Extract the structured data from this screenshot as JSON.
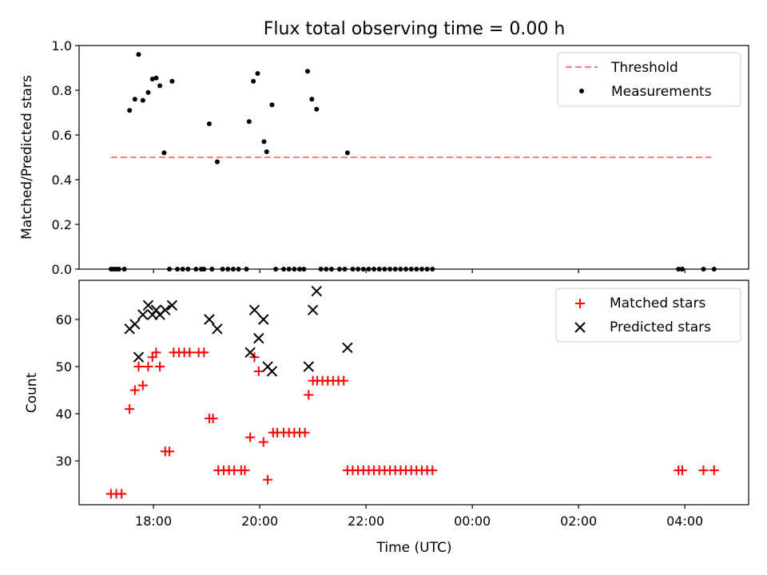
{
  "chart_data": {
    "title": "Flux total observing time = 0.00 h",
    "xlabel": "Time (UTC)",
    "x_ticks": [
      "18:00",
      "20:00",
      "22:00",
      "00:00",
      "02:00",
      "04:00"
    ],
    "x_tick_hours": [
      18,
      20,
      22,
      24,
      26,
      28
    ],
    "x_range_hours": [
      16.6,
      29.2
    ],
    "panels": [
      {
        "type": "scatter",
        "ylabel": "Matched/Predicted stars",
        "ylim": [
          0,
          1.0
        ],
        "yticks": [
          0.0,
          0.2,
          0.4,
          0.6,
          0.8,
          1.0
        ],
        "y_tick_labels": [
          "0.0",
          "0.2",
          "0.4",
          "0.6",
          "0.8",
          "1.0"
        ],
        "legend": "top-right",
        "threshold": {
          "name": "Threshold",
          "y": 0.5,
          "x_hours": [
            17.2,
            28.5
          ],
          "color": "#ff7f7f"
        },
        "series": [
          {
            "name": "Measurements",
            "color": "#000000",
            "marker": "dot",
            "points": [
              [
                17.2,
                0.0
              ],
              [
                17.25,
                0.0
              ],
              [
                17.3,
                0.0
              ],
              [
                17.35,
                0.0
              ],
              [
                17.45,
                0.0
              ],
              [
                17.55,
                0.71
              ],
              [
                17.65,
                0.76
              ],
              [
                17.72,
                0.96
              ],
              [
                17.8,
                0.755
              ],
              [
                17.9,
                0.79
              ],
              [
                17.98,
                0.85
              ],
              [
                18.05,
                0.855
              ],
              [
                18.12,
                0.82
              ],
              [
                18.2,
                0.52
              ],
              [
                18.3,
                0.0
              ],
              [
                18.35,
                0.84
              ],
              [
                18.45,
                0.0
              ],
              [
                18.55,
                0.0
              ],
              [
                18.65,
                0.0
              ],
              [
                18.8,
                0.0
              ],
              [
                18.9,
                0.0
              ],
              [
                18.95,
                0.0
              ],
              [
                19.05,
                0.65
              ],
              [
                19.1,
                0.0
              ],
              [
                19.2,
                0.48
              ],
              [
                19.3,
                0.0
              ],
              [
                19.4,
                0.0
              ],
              [
                19.5,
                0.0
              ],
              [
                19.6,
                0.0
              ],
              [
                19.75,
                0.0
              ],
              [
                19.8,
                0.66
              ],
              [
                19.88,
                0.84
              ],
              [
                19.96,
                0.875
              ],
              [
                20.08,
                0.57
              ],
              [
                20.13,
                0.525
              ],
              [
                20.23,
                0.735
              ],
              [
                20.3,
                0.0
              ],
              [
                20.45,
                0.0
              ],
              [
                20.55,
                0.0
              ],
              [
                20.65,
                0.0
              ],
              [
                20.75,
                0.0
              ],
              [
                20.83,
                0.0
              ],
              [
                20.9,
                0.885
              ],
              [
                20.98,
                0.76
              ],
              [
                21.07,
                0.715
              ],
              [
                21.15,
                0.0
              ],
              [
                21.25,
                0.0
              ],
              [
                21.35,
                0.0
              ],
              [
                21.5,
                0.0
              ],
              [
                21.6,
                0.0
              ],
              [
                21.65,
                0.52
              ],
              [
                21.75,
                0.0
              ],
              [
                21.85,
                0.0
              ],
              [
                21.95,
                0.0
              ],
              [
                22.05,
                0.0
              ],
              [
                22.15,
                0.0
              ],
              [
                22.25,
                0.0
              ],
              [
                22.35,
                0.0
              ],
              [
                22.45,
                0.0
              ],
              [
                22.55,
                0.0
              ],
              [
                22.65,
                0.0
              ],
              [
                22.75,
                0.0
              ],
              [
                22.85,
                0.0
              ],
              [
                22.95,
                0.0
              ],
              [
                23.05,
                0.0
              ],
              [
                23.15,
                0.0
              ],
              [
                23.25,
                0.0
              ],
              [
                27.88,
                0.0
              ],
              [
                27.95,
                0.0
              ],
              [
                28.35,
                0.0
              ],
              [
                28.55,
                0.0
              ]
            ]
          }
        ]
      },
      {
        "type": "scatter",
        "ylabel": "Count",
        "ylim": [
          20.7,
          68.3
        ],
        "yticks": [
          30,
          40,
          50,
          60
        ],
        "y_tick_labels": [
          "30",
          "40",
          "50",
          "60"
        ],
        "legend": "top-right",
        "series": [
          {
            "name": "Matched stars",
            "color": "#ff0000",
            "marker": "plus",
            "points": [
              [
                17.2,
                23
              ],
              [
                17.3,
                23
              ],
              [
                17.4,
                23
              ],
              [
                17.55,
                41
              ],
              [
                17.65,
                45
              ],
              [
                17.72,
                50
              ],
              [
                17.8,
                46
              ],
              [
                17.9,
                50
              ],
              [
                17.98,
                52
              ],
              [
                18.05,
                53
              ],
              [
                18.12,
                50
              ],
              [
                18.22,
                32
              ],
              [
                18.3,
                32
              ],
              [
                18.38,
                53
              ],
              [
                18.48,
                53
              ],
              [
                18.58,
                53
              ],
              [
                18.68,
                53
              ],
              [
                18.85,
                53
              ],
              [
                18.95,
                53
              ],
              [
                19.05,
                39
              ],
              [
                19.12,
                39
              ],
              [
                19.22,
                28
              ],
              [
                19.32,
                28
              ],
              [
                19.42,
                28
              ],
              [
                19.52,
                28
              ],
              [
                19.65,
                28
              ],
              [
                19.72,
                28
              ],
              [
                19.82,
                35
              ],
              [
                19.9,
                52
              ],
              [
                19.98,
                49
              ],
              [
                20.07,
                34
              ],
              [
                20.15,
                26
              ],
              [
                20.25,
                36
              ],
              [
                20.33,
                36
              ],
              [
                20.45,
                36
              ],
              [
                20.55,
                36
              ],
              [
                20.65,
                36
              ],
              [
                20.75,
                36
              ],
              [
                20.85,
                36
              ],
              [
                20.92,
                44
              ],
              [
                21.0,
                47
              ],
              [
                21.08,
                47
              ],
              [
                21.18,
                47
              ],
              [
                21.28,
                47
              ],
              [
                21.38,
                47
              ],
              [
                21.48,
                47
              ],
              [
                21.58,
                47
              ],
              [
                21.65,
                28
              ],
              [
                21.75,
                28
              ],
              [
                21.85,
                28
              ],
              [
                21.95,
                28
              ],
              [
                22.05,
                28
              ],
              [
                22.15,
                28
              ],
              [
                22.25,
                28
              ],
              [
                22.35,
                28
              ],
              [
                22.45,
                28
              ],
              [
                22.55,
                28
              ],
              [
                22.65,
                28
              ],
              [
                22.75,
                28
              ],
              [
                22.85,
                28
              ],
              [
                22.95,
                28
              ],
              [
                23.05,
                28
              ],
              [
                23.15,
                28
              ],
              [
                23.25,
                28
              ],
              [
                27.88,
                28
              ],
              [
                27.95,
                28
              ],
              [
                28.35,
                28
              ],
              [
                28.55,
                28
              ]
            ]
          },
          {
            "name": "Predicted stars",
            "color": "#000000",
            "marker": "x",
            "points": [
              [
                17.55,
                58
              ],
              [
                17.65,
                59
              ],
              [
                17.72,
                52
              ],
              [
                17.8,
                61
              ],
              [
                17.9,
                63
              ],
              [
                17.98,
                61
              ],
              [
                18.05,
                62
              ],
              [
                18.12,
                61
              ],
              [
                18.22,
                62
              ],
              [
                18.35,
                63
              ],
              [
                19.05,
                60
              ],
              [
                19.2,
                58
              ],
              [
                19.82,
                53
              ],
              [
                19.9,
                62
              ],
              [
                19.98,
                56
              ],
              [
                20.07,
                60
              ],
              [
                20.15,
                50
              ],
              [
                20.23,
                49
              ],
              [
                20.92,
                50
              ],
              [
                21.0,
                62
              ],
              [
                21.07,
                66
              ],
              [
                21.65,
                54
              ]
            ]
          }
        ]
      }
    ]
  }
}
